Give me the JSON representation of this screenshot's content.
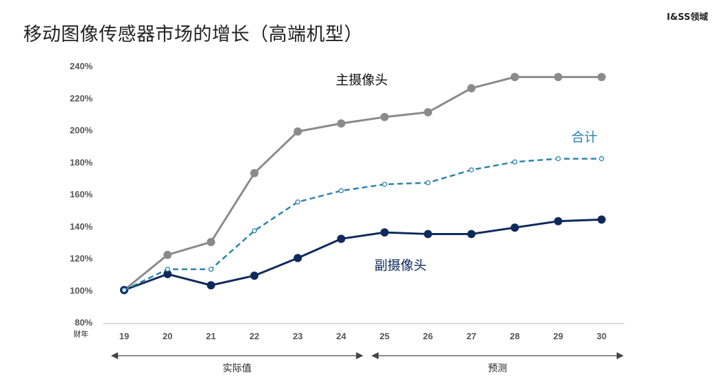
{
  "header": {
    "title": "移动图像传感器市场的增长（高端机型）",
    "tag": "I&SS领域"
  },
  "chart_data": {
    "type": "line",
    "title": "移动图像传感器市场的增长（高端机型）",
    "xlabel": "财年",
    "ylabel": "",
    "x": [
      "19",
      "20",
      "21",
      "22",
      "23",
      "24",
      "25",
      "26",
      "27",
      "28",
      "29",
      "30"
    ],
    "ylim": [
      80,
      240
    ],
    "yticks": [
      80,
      100,
      120,
      140,
      160,
      180,
      200,
      220,
      240
    ],
    "ytick_suffix": "%",
    "grid": false,
    "series": [
      {
        "name": "主摄像头",
        "color": "#8a8a8a",
        "style": "solid",
        "marker": "filled",
        "values": [
          100,
          122,
          130,
          173,
          199,
          204,
          208,
          211,
          226,
          233,
          233,
          233
        ]
      },
      {
        "name": "合计",
        "color": "#2a82b0",
        "style": "dashed",
        "marker": "hollow",
        "values": [
          100,
          113,
          113,
          137,
          155,
          162,
          166,
          167,
          175,
          180,
          182,
          182
        ]
      },
      {
        "name": "副摄像头",
        "color": "#0e2a5c",
        "style": "solid",
        "marker": "filled",
        "values": [
          100,
          110,
          103,
          109,
          120,
          132,
          136,
          135,
          135,
          139,
          143,
          144
        ]
      }
    ],
    "periods": [
      {
        "label": "实际值",
        "from": "19",
        "to": "24"
      },
      {
        "label": "预测",
        "from": "25",
        "to": "30"
      }
    ]
  }
}
